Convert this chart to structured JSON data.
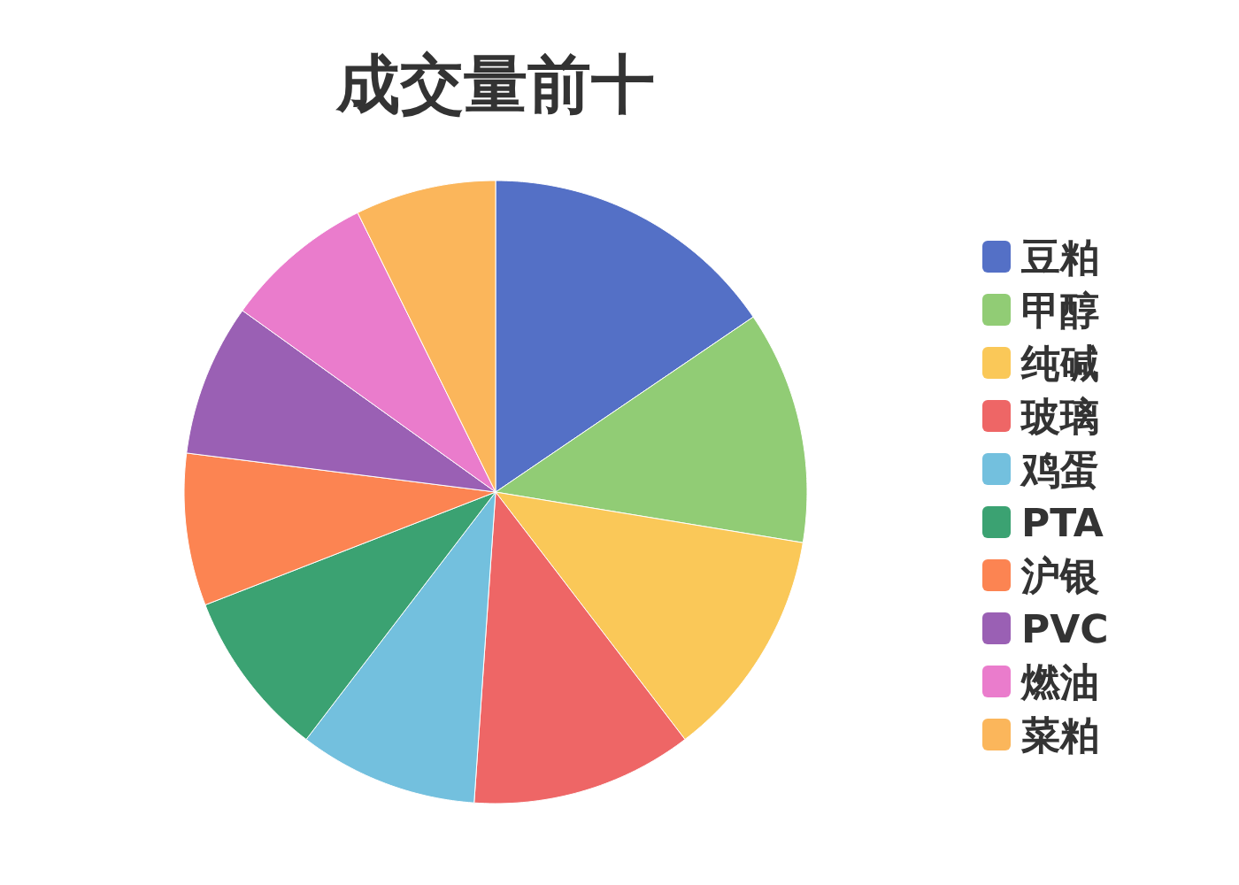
{
  "chart_data": {
    "type": "pie",
    "title": "成交量前十",
    "legend": "right",
    "categories": [
      "豆粕",
      "甲醇",
      "纯碱",
      "玻璃",
      "鸡蛋",
      "PTA",
      "沪银",
      "PVC",
      "燃油",
      "菜粕"
    ],
    "values": [
      15.5,
      12.1,
      12.0,
      11.5,
      9.3,
      8.7,
      7.9,
      7.9,
      7.8,
      7.3
    ],
    "colors": [
      "#5470c6",
      "#91cc75",
      "#fac858",
      "#ee6666",
      "#73c0de",
      "#3ba272",
      "#fc8452",
      "#9a60b4",
      "#ea7ccc",
      "#fbb65b"
    ]
  }
}
